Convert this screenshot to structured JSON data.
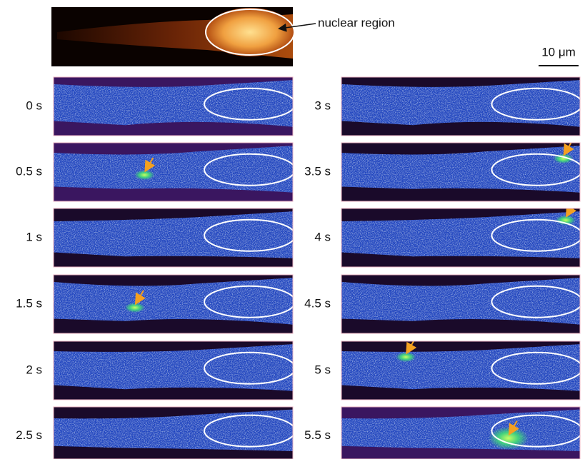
{
  "annotation": "nuclear region",
  "scale_bar": "10 μm",
  "panels": [
    {
      "label": "0 s"
    },
    {
      "label": "0.5 s"
    },
    {
      "label": "1 s"
    },
    {
      "label": "1.5 s"
    },
    {
      "label": "2 s"
    },
    {
      "label": "2.5 s"
    },
    {
      "label": "3 s"
    },
    {
      "label": "3.5 s"
    },
    {
      "label": "4 s"
    },
    {
      "label": "4.5 s"
    },
    {
      "label": "5 s"
    },
    {
      "label": "5.5 s"
    }
  ]
}
